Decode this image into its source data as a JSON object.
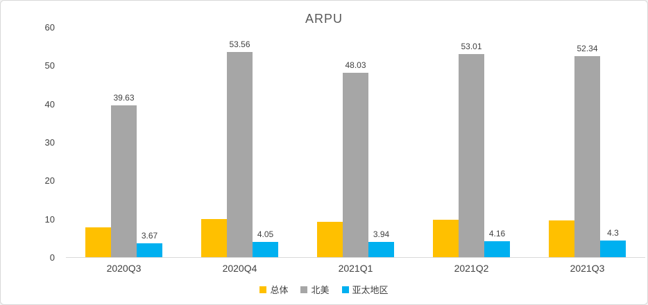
{
  "chart_data": {
    "type": "bar",
    "title": "ARPU",
    "categories": [
      "2020Q3",
      "2020Q4",
      "2021Q1",
      "2021Q2",
      "2021Q3"
    ],
    "series": [
      {
        "name": "总体",
        "color": "#FFC000",
        "values": [
          7.7,
          10.0,
          9.2,
          9.8,
          9.6
        ],
        "labels": null,
        "note": "values estimated from bar heights; no data labels shown"
      },
      {
        "name": "北美",
        "color": "#A6A6A6",
        "values": [
          39.63,
          53.56,
          48.03,
          53.01,
          52.34
        ],
        "labels": [
          "39.63",
          "53.56",
          "48.03",
          "53.01",
          "52.34"
        ]
      },
      {
        "name": "亚太地区",
        "color": "#00B0F0",
        "values": [
          3.67,
          4.05,
          3.94,
          4.16,
          4.3
        ],
        "labels": [
          "3.67",
          "4.05",
          "3.94",
          "4.16",
          "4.3"
        ]
      }
    ],
    "xlabel": "",
    "ylabel": "",
    "ylim": [
      0,
      60
    ],
    "yticks": [
      0,
      10,
      20,
      30,
      40,
      50,
      60
    ],
    "grid": false,
    "legend_position": "bottom",
    "title_color": "#595959",
    "axis_text_color": "#404040",
    "axis_line_color": "#d9d9d9"
  }
}
